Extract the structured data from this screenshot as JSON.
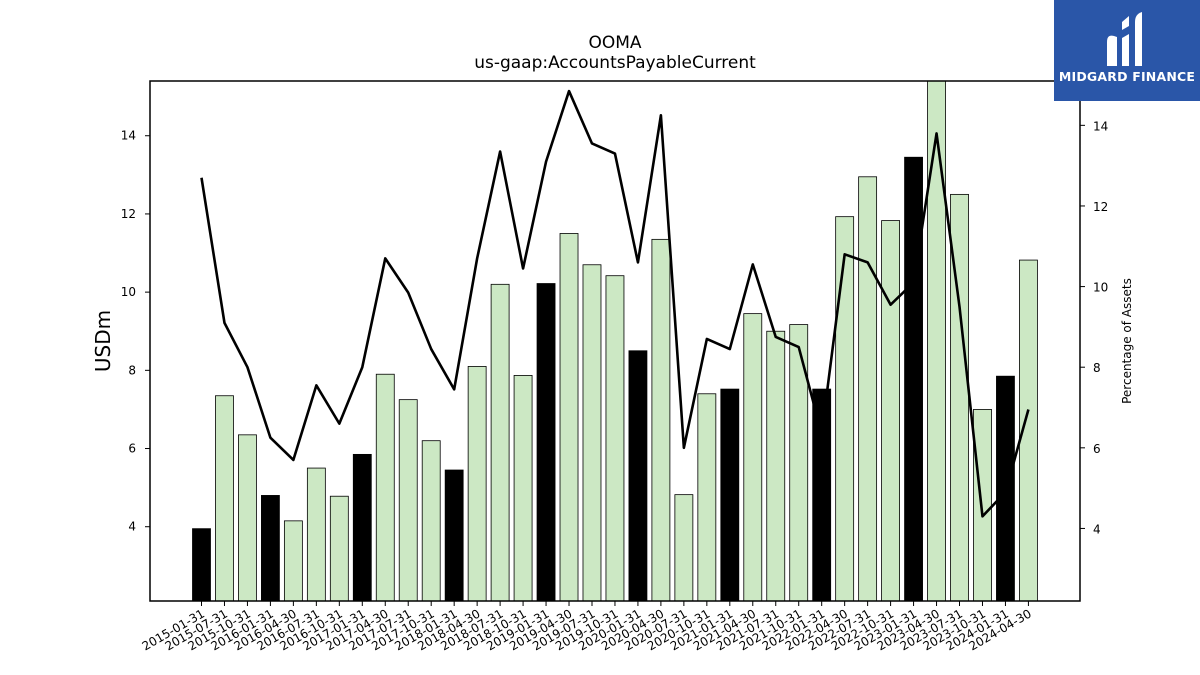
{
  "chart_data": {
    "type": "bar",
    "title": "OOMA",
    "subtitle": "us-gaap:AccountsPayableCurrent",
    "ylabel": "USDm",
    "y2label": "Percentage of Assets",
    "ylim": [
      2.1,
      15.4
    ],
    "y2lim": [
      2.2,
      15.1
    ],
    "yticks": [
      4,
      6,
      8,
      10,
      12,
      14
    ],
    "y2ticks": [
      4,
      6,
      8,
      10,
      12,
      14
    ],
    "categories": [
      "2015-01-31",
      "2015-07-31",
      "2015-10-31",
      "2016-01-31",
      "2016-04-30",
      "2016-07-31",
      "2016-10-31",
      "2017-01-31",
      "2017-04-30",
      "2017-07-31",
      "2017-10-31",
      "2018-01-31",
      "2018-04-30",
      "2018-07-31",
      "2018-10-31",
      "2019-01-31",
      "2019-04-30",
      "2019-07-31",
      "2019-10-31",
      "2020-01-31",
      "2020-04-30",
      "2020-07-31",
      "2020-10-31",
      "2021-01-31",
      "2021-04-30",
      "2021-07-31",
      "2021-10-31",
      "2022-01-31",
      "2022-04-30",
      "2022-07-31",
      "2022-10-31",
      "2023-01-31",
      "2023-04-30",
      "2023-07-31",
      "2023-10-31",
      "2024-01-31",
      "2024-04-30"
    ],
    "series": [
      {
        "kind": "bar",
        "values": [
          3.95,
          7.35,
          6.35,
          4.8,
          4.15,
          5.5,
          4.78,
          5.85,
          7.9,
          7.25,
          6.2,
          5.45,
          8.1,
          10.2,
          7.87,
          10.22,
          11.5,
          10.7,
          10.42,
          8.5,
          11.35,
          4.82,
          7.4,
          7.52,
          9.45,
          9.0,
          9.17,
          7.52,
          11.93,
          12.95,
          11.83,
          13.45,
          15.5,
          12.5,
          7.0,
          7.85,
          10.82
        ],
        "highlight": [
          true,
          false,
          false,
          true,
          false,
          false,
          false,
          true,
          false,
          false,
          false,
          true,
          false,
          false,
          false,
          true,
          false,
          false,
          false,
          true,
          false,
          false,
          false,
          true,
          false,
          false,
          false,
          true,
          false,
          false,
          false,
          true,
          false,
          false,
          false,
          true,
          false
        ],
        "color": "#cce8c4",
        "highlight_color": "#000000"
      },
      {
        "kind": "line",
        "axis": "right",
        "values": [
          12.7,
          9.1,
          8.0,
          6.25,
          5.7,
          7.55,
          6.6,
          8.0,
          10.7,
          9.85,
          8.45,
          7.45,
          10.7,
          13.35,
          10.45,
          13.1,
          14.85,
          13.55,
          13.3,
          10.6,
          14.25,
          6.0,
          8.7,
          8.45,
          10.55,
          8.75,
          8.5,
          6.35,
          10.8,
          10.6,
          9.55,
          10.1,
          13.8,
          9.5,
          4.3,
          4.9,
          6.95
        ],
        "color": "#000000"
      }
    ]
  },
  "logo": {
    "text": "MIDGARD FINANCE",
    "color": "#2a56a8"
  }
}
